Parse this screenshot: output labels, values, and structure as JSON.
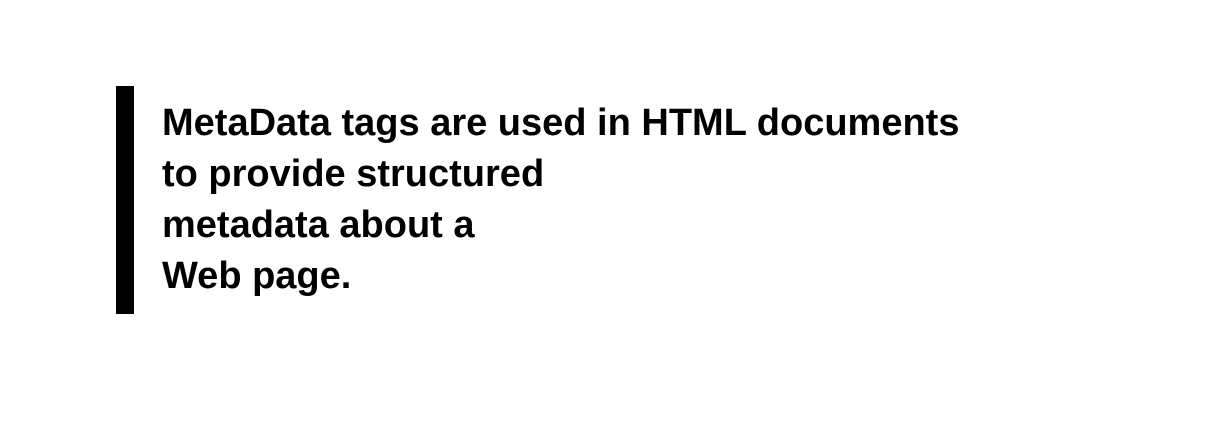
{
  "quote": {
    "lines": [
      "MetaData tags are used in HTML documents",
      "to provide structured",
      "metadata about a",
      "Web page."
    ],
    "bar_color": "#000000",
    "text_color": "#000000",
    "background_color": "#ffffff"
  }
}
